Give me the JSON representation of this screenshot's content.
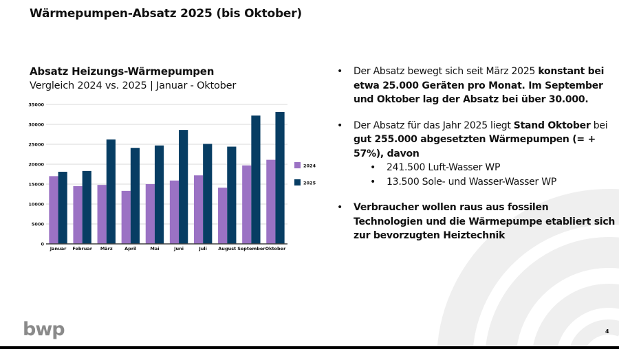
{
  "slide": {
    "title": "Wärmepumpen-Absatz 2025 (bis Oktober)",
    "page_number": "4",
    "logo_text": "bwp"
  },
  "bullets": [
    {
      "parts": [
        {
          "text": "Der Absatz bewegt  sich seit März 2025 ",
          "bold": false
        },
        {
          "text": "konstant bei etwa 25.000 Geräten pro Monat. Im September und Oktober lag der Absatz bei über 30.000.",
          "bold": true
        }
      ]
    },
    {
      "parts": [
        {
          "text": "Der Absatz für das Jahr 2025  liegt ",
          "bold": false
        },
        {
          "text": "Stand Oktober",
          "bold": true
        },
        {
          "text": " bei ",
          "bold": false
        },
        {
          "text": "gut 255.000 abgesetzten Wärmepumpen (= + 57%), davon",
          "bold": true
        }
      ],
      "sub": [
        "241.500 Luft-Wasser WP",
        "13.500 Sole- und Wasser-Wasser WP"
      ]
    },
    {
      "parts": [
        {
          "text": "Verbraucher wollen raus aus fossilen Technologien und die Wärmepumpe etabliert sich zur bevorzugten Heiztechnik",
          "bold": true
        }
      ]
    }
  ],
  "bullet_char": "•",
  "colors": {
    "series_2024": "#9b72c4",
    "series_2025": "#073d63",
    "grid": "#d9d9d9",
    "axis": "#404040",
    "arc": "#efefef",
    "logo": "#8a8a8a"
  },
  "chart_data": {
    "type": "bar",
    "title": "Absatz Heizungs-Wärmepumpen",
    "subtitle": "Vergleich 2024 vs. 2025 | Januar - Oktober",
    "categories": [
      "Januar",
      "Februar",
      "März",
      "April",
      "Mai",
      "Juni",
      "Juli",
      "August",
      "September",
      "Oktober"
    ],
    "series": [
      {
        "name": "2024",
        "values": [
          17000,
          14500,
          14800,
          13300,
          15000,
          15900,
          17200,
          14100,
          19700,
          21100
        ]
      },
      {
        "name": "2025",
        "values": [
          18100,
          18300,
          26200,
          24100,
          24700,
          28600,
          25100,
          24400,
          32200,
          33100
        ]
      }
    ],
    "yticks": [
      0,
      5000,
      10000,
      15000,
      20000,
      25000,
      30000,
      35000
    ],
    "ylim": [
      0,
      35000
    ],
    "xlabel": "",
    "ylabel": "",
    "grid": true,
    "legend": "right"
  }
}
